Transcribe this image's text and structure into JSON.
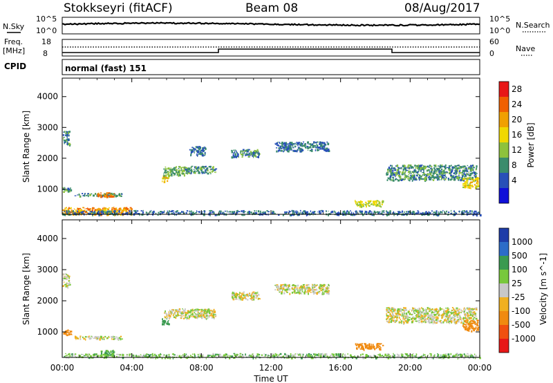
{
  "header": {
    "title": "Stokkseyri (fitACF)",
    "beam": "Beam 08",
    "date": "08/Aug/2017"
  },
  "strips": {
    "nsky_label": "N.Sky",
    "nsearch_label": "N.Search",
    "nsky_ticks": [
      "10^5",
      "10^0"
    ],
    "nsearch_ticks": [
      "10^5",
      "10^0"
    ],
    "freq_label": "Freq.",
    "freq_unit": "[MHz]",
    "freq_ticks": [
      "18",
      "8"
    ],
    "nave_label": "Nave",
    "nave_ticks": [
      "60",
      "0"
    ],
    "cpid_label": "CPID",
    "cpid_value": "normal (fast) 151"
  },
  "axes": {
    "ylabel": "Slant Range [km]",
    "xlabel": "Time UT",
    "y_ticks": [
      "4000",
      "3000",
      "2000",
      "1000"
    ],
    "x_ticks": [
      "00:00",
      "04:00",
      "08:00",
      "12:00",
      "16:00",
      "20:00",
      "00:00"
    ]
  },
  "power_scale": {
    "label": "Power [dB]",
    "ticks": [
      "28",
      "24",
      "20",
      "16",
      "12",
      "8",
      "4"
    ],
    "colors": [
      "#1010d8",
      "#2850b8",
      "#3a8c6c",
      "#8ec23c",
      "#f0d800",
      "#f0a000",
      "#f06000",
      "#e81818"
    ]
  },
  "velocity_scale": {
    "label": "Velocity [m s^-1]",
    "ticks": [
      "1000",
      "500",
      "100",
      "25",
      "-25",
      "-100",
      "-500",
      "-1000"
    ],
    "colors": [
      "#1e3ca8",
      "#2c6cc8",
      "#3a9a50",
      "#78c83c",
      "#c8c8c8",
      "#f0b020",
      "#f08a10",
      "#f05010",
      "#e81818"
    ]
  },
  "chart_data": [
    {
      "type": "heatmap",
      "title": "Power [dB]",
      "xlabel": "Time UT",
      "ylabel": "Slant Range [km]",
      "xlim": [
        0,
        24
      ],
      "ylim": [
        180,
        4600
      ],
      "zlim": [
        0,
        32
      ],
      "echo_regions": [
        {
          "t": [
            0.0,
            0.4
          ],
          "r": [
            2450,
            2900
          ],
          "value": 10
        },
        {
          "t": [
            0.0,
            0.5
          ],
          "r": [
            920,
            1080
          ],
          "value": 10
        },
        {
          "t": [
            0.7,
            3.4
          ],
          "r": [
            780,
            880
          ],
          "value": 10
        },
        {
          "t": [
            2.0,
            3.0
          ],
          "r": [
            760,
            900
          ],
          "value": 24
        },
        {
          "t": [
            0.0,
            4.0
          ],
          "r": [
            180,
            420
          ],
          "value": 22
        },
        {
          "t": [
            0.0,
            24.0
          ],
          "r": [
            180,
            320
          ],
          "value": 8
        },
        {
          "t": [
            5.7,
            6.1
          ],
          "r": [
            1250,
            1450
          ],
          "value": 18
        },
        {
          "t": [
            5.8,
            7.2
          ],
          "r": [
            1450,
            1750
          ],
          "value": 12
        },
        {
          "t": [
            7.0,
            8.8
          ],
          "r": [
            1520,
            1760
          ],
          "value": 10
        },
        {
          "t": [
            7.3,
            8.2
          ],
          "r": [
            2100,
            2400
          ],
          "value": 8
        },
        {
          "t": [
            9.7,
            11.3
          ],
          "r": [
            2050,
            2300
          ],
          "value": 10
        },
        {
          "t": [
            12.2,
            15.3
          ],
          "r": [
            2250,
            2550
          ],
          "value": 8
        },
        {
          "t": [
            16.8,
            18.4
          ],
          "r": [
            450,
            650
          ],
          "value": 16
        },
        {
          "t": [
            18.6,
            23.8
          ],
          "r": [
            1300,
            1800
          ],
          "value": 10
        },
        {
          "t": [
            23.0,
            23.9
          ],
          "r": [
            1050,
            1400
          ],
          "value": 18
        }
      ]
    },
    {
      "type": "heatmap",
      "title": "Velocity [m s^-1]",
      "xlabel": "Time UT",
      "ylabel": "Slant Range [km]",
      "xlim": [
        0,
        24
      ],
      "ylim": [
        180,
        4600
      ],
      "zlim": [
        -1000,
        1000
      ],
      "echo_regions": [
        {
          "t": [
            0.0,
            0.4
          ],
          "r": [
            2450,
            2900
          ],
          "value": 0
        },
        {
          "t": [
            0.0,
            0.5
          ],
          "r": [
            920,
            1080
          ],
          "value": -300
        },
        {
          "t": [
            0.7,
            3.4
          ],
          "r": [
            780,
            880
          ],
          "value": 0
        },
        {
          "t": [
            2.2,
            3.0
          ],
          "r": [
            250,
            450
          ],
          "value": 100
        },
        {
          "t": [
            0.0,
            24.0
          ],
          "r": [
            180,
            320
          ],
          "value": 60
        },
        {
          "t": [
            5.7,
            6.1
          ],
          "r": [
            1250,
            1450
          ],
          "value": 400
        },
        {
          "t": [
            5.8,
            8.8
          ],
          "r": [
            1450,
            1760
          ],
          "value": 0
        },
        {
          "t": [
            9.7,
            11.3
          ],
          "r": [
            2050,
            2300
          ],
          "value": 0
        },
        {
          "t": [
            12.2,
            15.3
          ],
          "r": [
            2250,
            2550
          ],
          "value": 0
        },
        {
          "t": [
            16.8,
            18.4
          ],
          "r": [
            450,
            650
          ],
          "value": -400
        },
        {
          "t": [
            18.6,
            23.8
          ],
          "r": [
            1300,
            1800
          ],
          "value": 0
        },
        {
          "t": [
            23.0,
            23.9
          ],
          "r": [
            1050,
            1400
          ],
          "value": -400
        }
      ]
    }
  ]
}
